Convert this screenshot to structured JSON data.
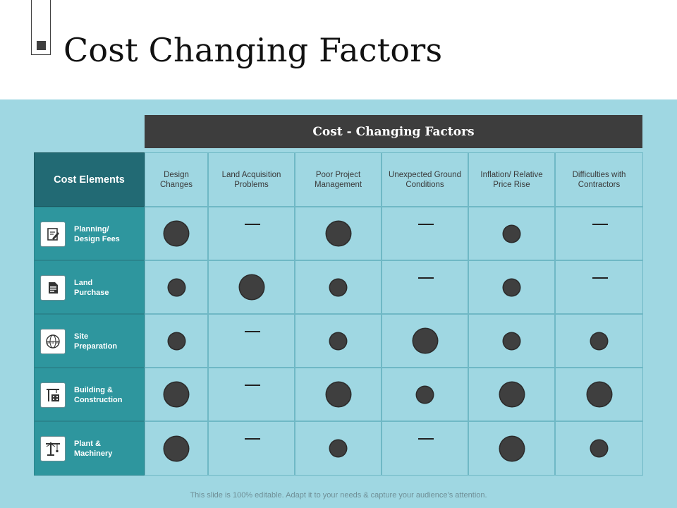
{
  "slide": {
    "title": "Cost Changing Factors",
    "footer": "This slide is 100% editable. Adapt it to your needs & capture your audience’s attention."
  },
  "table": {
    "header_bar": "Cost - Changing Factors",
    "corner_label": "Cost Elements",
    "columns": [
      "Design\nChanges",
      "Land Acquisition\nProblems",
      "Poor Project\nManagement",
      "Unexpected Ground\nConditions",
      "Inflation/ Relative\nPrice Rise",
      "Difficulties with\nContractors"
    ],
    "rows": [
      {
        "label": "Planning/\nDesign Fees",
        "icon": "document-pencil-icon",
        "impacts": [
          "large",
          "none",
          "large",
          "none",
          "small",
          "none"
        ]
      },
      {
        "label": "Land\nPurchase",
        "icon": "purchase-document-icon",
        "impacts": [
          "small",
          "large",
          "small",
          "none",
          "small",
          "none"
        ]
      },
      {
        "label": "Site\nPreparation",
        "icon": "globe-www-icon",
        "impacts": [
          "small",
          "none",
          "small",
          "large",
          "small",
          "small"
        ]
      },
      {
        "label": "Building  &\nConstruction",
        "icon": "crane-building-icon",
        "impacts": [
          "large",
          "none",
          "large",
          "small",
          "large",
          "large"
        ]
      },
      {
        "label": "Plant &\nMachinery",
        "icon": "tower-crane-icon",
        "impacts": [
          "large",
          "none",
          "small",
          "none",
          "large",
          "small"
        ]
      }
    ]
  },
  "colors": {
    "band": "#9fd7e2",
    "header_bar": "#3d3d3d",
    "corner": "#226a74",
    "row_header": "#2e969e",
    "dot": "#3f3f3f"
  }
}
